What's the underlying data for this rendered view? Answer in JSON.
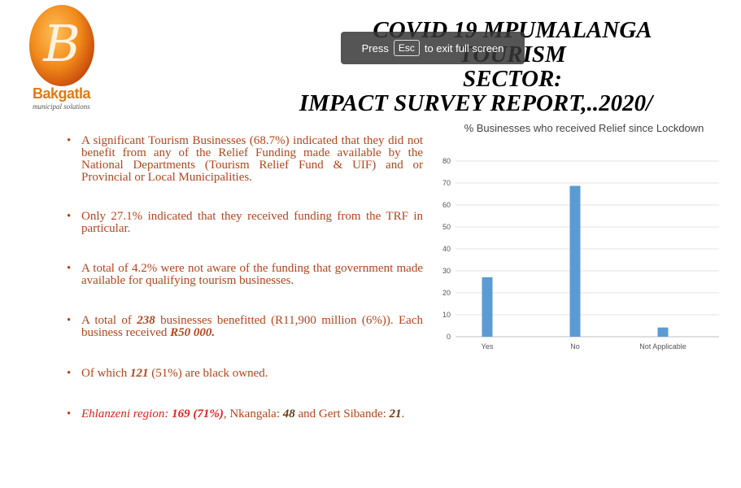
{
  "logo": {
    "letter": "B",
    "name": "Bakgatla",
    "tagline": "municipal solutions"
  },
  "title": {
    "line1": "COVID 19 MPUMALANGA TOURISM",
    "line2": "SECTOR:",
    "line3": "IMPACT SURVEY REPORT,..2020/"
  },
  "overlay": {
    "press": "Press",
    "key": "Esc",
    "rest": "to exit full screen"
  },
  "bullets": {
    "b1": "A significant Tourism Businesses (68.7%) indicated that they did not benefit from any of the Relief Funding made available by the National Departments (Tourism Relief Fund & UIF) and or Provincial or Local Municipalities.",
    "b2": "Only 27.1% indicated that they received funding from the TRF in particular.",
    "b3": "A total of 4.2% were not aware of the funding that government made available for qualifying tourism businesses.",
    "b4_pre": "A total of ",
    "b4_num": "238",
    "b4_mid": " businesses benefitted (R11,900 million (6%)). Each business received ",
    "b4_amt": "R50 000.",
    "b5_pre": "Of which ",
    "b5_num": "121",
    "b5_post": " (51%) are black owned.",
    "b6_region": "Ehlanzeni region: ",
    "b6_num": "169 (71%)",
    "b6_mid": ", Nkangala: ",
    "b6_nk": "48",
    "b6_and": " and Gert Sibande: ",
    "b6_gs": "21",
    "b6_end": "."
  },
  "chart_data": {
    "type": "bar",
    "title": "% Businesses who received Relief since Lockdown",
    "categories": [
      "Yes",
      "No",
      "Not Applicable"
    ],
    "values": [
      27.1,
      68.7,
      4.2
    ],
    "ylim": [
      0,
      80
    ],
    "yticks": [
      0,
      10,
      20,
      30,
      40,
      50,
      60,
      70,
      80
    ],
    "grid": true,
    "bar_color": "#5b9bd5"
  }
}
